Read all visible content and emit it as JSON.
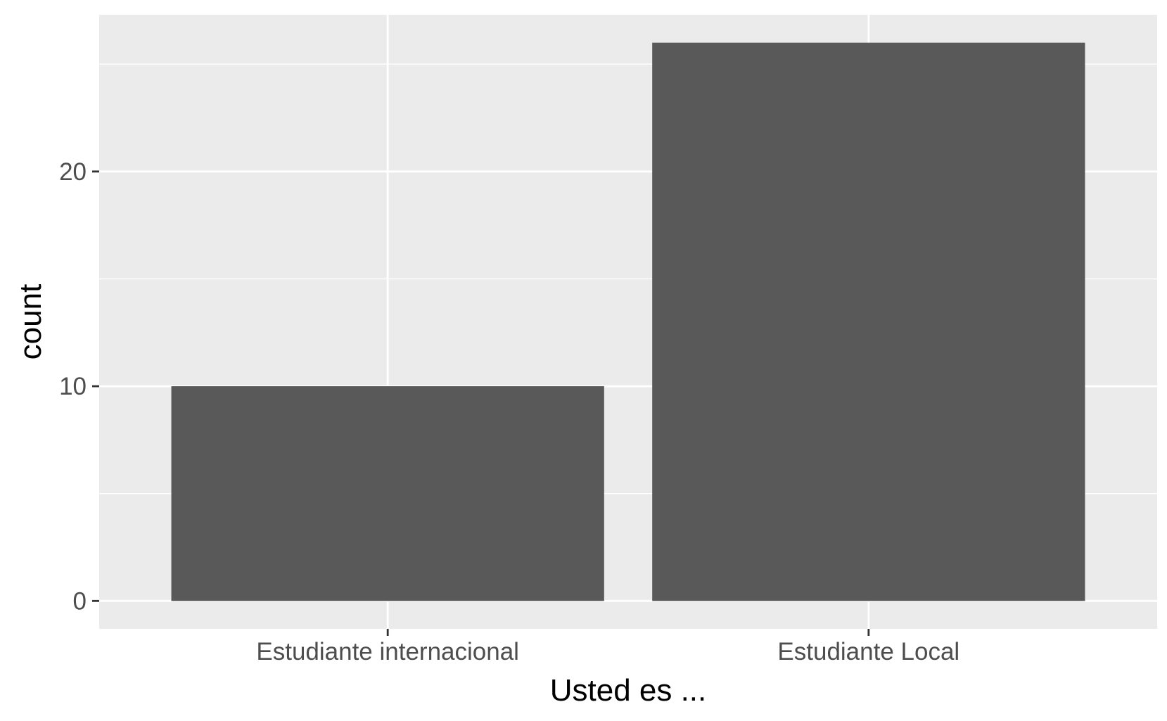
{
  "chart_data": {
    "type": "bar",
    "title": "",
    "xlabel": "Usted es ...",
    "ylabel": "count",
    "categories": [
      "Estudiante internacional",
      "Estudiante Local"
    ],
    "values": [
      10,
      26
    ],
    "ylim": [
      -1.3,
      27.3
    ],
    "yticks": [
      0,
      10,
      20
    ],
    "grid": true,
    "legend": "none",
    "colors": {
      "panel": "#ebebeb",
      "grid": "#ffffff",
      "bar": "#595959",
      "tick": "#333333",
      "tick_label": "#4d4d4d"
    }
  }
}
